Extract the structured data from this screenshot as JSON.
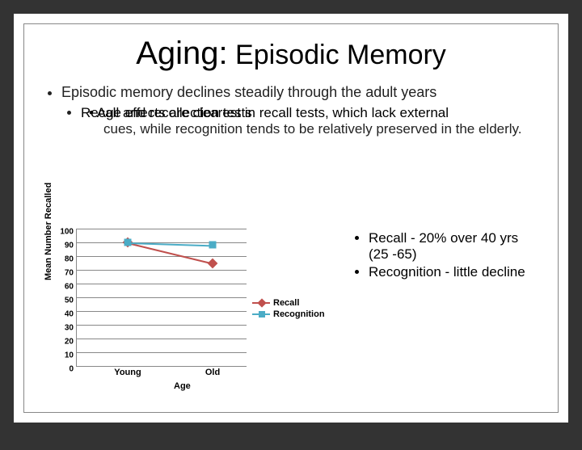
{
  "title_prefix": "Aging:",
  "title_rest": " Episodic Memory",
  "bullet1": "Episodic memory declines steadily through the adult years",
  "bullet2a": "Recall and recollection tests",
  "bullet2b": "• Age effects are clearest in recall tests, which lack external",
  "bullet3": "cues, while recognition tends to be relatively preserved in the elderly.",
  "note1": "Recall - 20% over 40 yrs (25 -65)",
  "note2": "Recognition - little decline",
  "chart": {
    "ylabel": "Mean Number Recalled",
    "xlabel": "Age",
    "ylim": [
      0,
      100
    ],
    "ytick_step": 10,
    "categories": [
      "Young",
      "Old"
    ],
    "series": [
      {
        "name": "Recall",
        "color": "#c0504d",
        "marker": "diamond",
        "values": [
          90,
          75
        ]
      },
      {
        "name": "Recognition",
        "color": "#4bacc6",
        "marker": "square",
        "values": [
          90,
          88
        ]
      }
    ],
    "grid_color": "#888888",
    "background": "#ffffff"
  }
}
